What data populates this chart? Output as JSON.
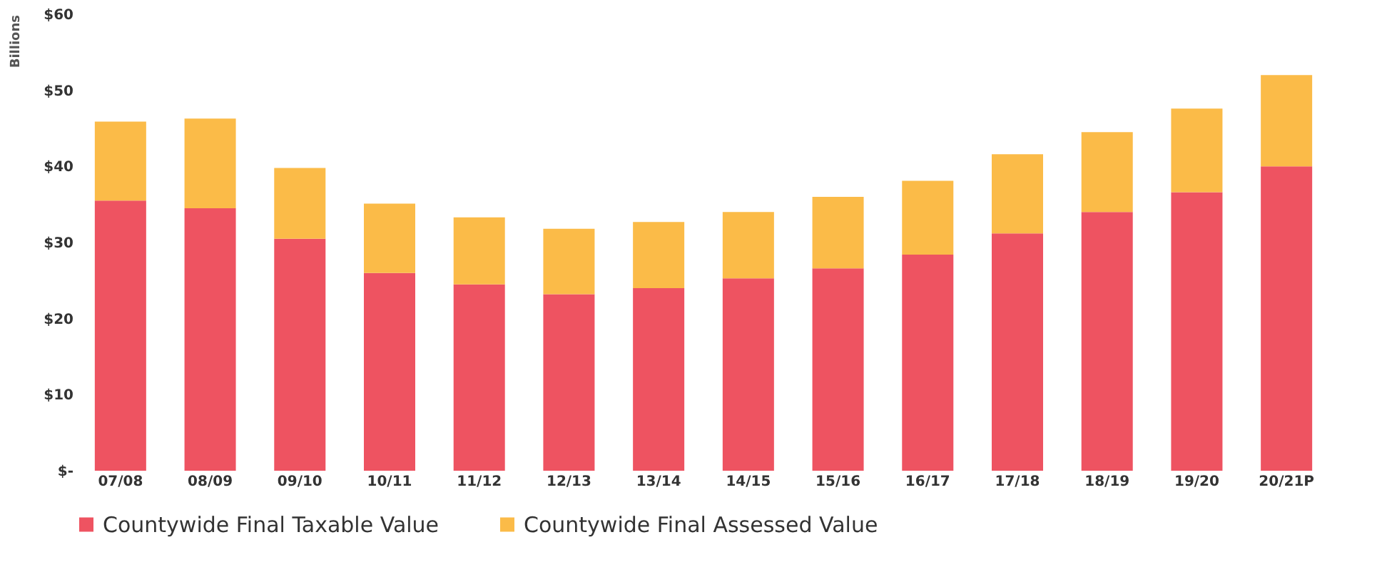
{
  "chart_data": {
    "type": "bar",
    "stacked": true,
    "ylabel": "Billions",
    "categories": [
      "07/08",
      "08/09",
      "09/10",
      "10/11",
      "11/12",
      "12/13",
      "13/14",
      "14/15",
      "15/16",
      "16/17",
      "17/18",
      "18/19",
      "19/20",
      "20/21P"
    ],
    "series": [
      {
        "name": "Countywide Final Taxable Value",
        "color": "#ee5361",
        "values": [
          35.5,
          34.5,
          30.5,
          26,
          24.5,
          23.2,
          24,
          25.3,
          26.6,
          28.4,
          31.2,
          34,
          36.6,
          40
        ]
      },
      {
        "name": "Countywide Final Assessed Value",
        "color": "#fbbb48",
        "values": [
          10.4,
          11.8,
          9.3,
          9.1,
          8.8,
          8.6,
          8.7,
          8.7,
          9.4,
          9.7,
          10.4,
          10.5,
          11,
          12
        ]
      }
    ],
    "ylim": [
      0,
      60
    ],
    "yticks": [
      {
        "value": 0,
        "label": "$-"
      },
      {
        "value": 10,
        "label": "$10"
      },
      {
        "value": 20,
        "label": "$20"
      },
      {
        "value": 30,
        "label": "$30"
      },
      {
        "value": 40,
        "label": "$40"
      },
      {
        "value": 50,
        "label": "$50"
      },
      {
        "value": 60,
        "label": "$60"
      }
    ],
    "grid": false,
    "legend": "bottom"
  }
}
